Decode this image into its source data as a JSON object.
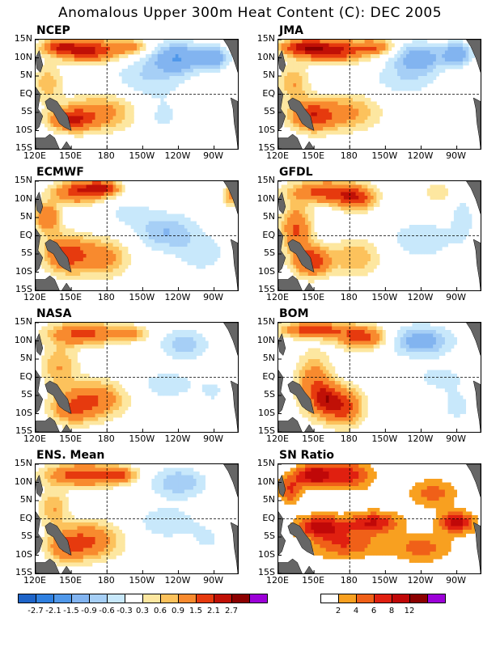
{
  "title": "Anomalous Upper 300m Heat Content (C): DEC 2005",
  "chart_data": {
    "type": "heatmap",
    "x_ticks": [
      "120E",
      "150E",
      "180",
      "150W",
      "120W",
      "90W"
    ],
    "y_ticks": [
      "15N",
      "10N",
      "5N",
      "EQ",
      "5S",
      "10S",
      "15S"
    ],
    "lon_range": [
      120,
      290
    ],
    "lat_range": [
      -15,
      15
    ],
    "panels": [
      {
        "name": "NCEP",
        "blobs": [
          [
            165,
            12,
            25,
            3,
            2.2
          ],
          [
            140,
            13,
            15,
            2,
            1.6
          ],
          [
            150,
            -7,
            18,
            3,
            1.8
          ],
          [
            175,
            -5,
            30,
            5,
            1.1
          ],
          [
            130,
            3,
            12,
            5,
            0.8
          ],
          [
            240,
            10,
            20,
            4,
            -1.4
          ],
          [
            270,
            10,
            12,
            3,
            -1.2
          ],
          [
            215,
            5,
            30,
            6,
            -0.6
          ],
          [
            225,
            -6,
            20,
            5,
            -0.4
          ],
          [
            200,
            13,
            15,
            2,
            1.0
          ]
        ]
      },
      {
        "name": "JMA",
        "blobs": [
          [
            165,
            12,
            28,
            3,
            2.3
          ],
          [
            140,
            13,
            18,
            2,
            1.7
          ],
          [
            148,
            -6,
            18,
            4,
            1.8
          ],
          [
            178,
            -5,
            28,
            5,
            1.0
          ],
          [
            133,
            3,
            12,
            5,
            0.9
          ],
          [
            238,
            10,
            20,
            4,
            -1.2
          ],
          [
            270,
            11,
            12,
            3,
            -1.3
          ],
          [
            225,
            4,
            28,
            5,
            -0.5
          ],
          [
            230,
            -9,
            18,
            4,
            -0.3
          ],
          [
            202,
            13,
            15,
            2,
            1.2
          ]
        ]
      },
      {
        "name": "ECMWF",
        "blobs": [
          [
            155,
            12,
            20,
            3,
            1.8
          ],
          [
            175,
            13,
            15,
            2,
            2.0
          ],
          [
            130,
            5,
            10,
            4,
            1.5
          ],
          [
            145,
            -5,
            18,
            5,
            1.7
          ],
          [
            175,
            -6,
            22,
            5,
            1.2
          ],
          [
            230,
            1,
            25,
            5,
            -0.9
          ],
          [
            200,
            6,
            18,
            3,
            -0.5
          ],
          [
            260,
            -5,
            20,
            5,
            -0.5
          ],
          [
            285,
            11,
            6,
            3,
            1.2
          ]
        ]
      },
      {
        "name": "GFDL",
        "blobs": [
          [
            160,
            12,
            30,
            3,
            1.8
          ],
          [
            185,
            10,
            15,
            3,
            1.6
          ],
          [
            135,
            2,
            12,
            6,
            1.6
          ],
          [
            148,
            -7,
            15,
            4,
            2.0
          ],
          [
            185,
            -6,
            20,
            5,
            0.9
          ],
          [
            240,
            -1,
            25,
            5,
            -0.6
          ],
          [
            275,
            5,
            12,
            8,
            -0.4
          ],
          [
            255,
            12,
            15,
            3,
            0.5
          ]
        ]
      },
      {
        "name": "NASA",
        "blobs": [
          [
            160,
            12,
            28,
            3,
            1.7
          ],
          [
            200,
            12,
            15,
            2,
            1.0
          ],
          [
            140,
            3,
            15,
            6,
            0.9
          ],
          [
            170,
            -6,
            25,
            5,
            1.4
          ],
          [
            150,
            -9,
            18,
            4,
            1.1
          ],
          [
            245,
            9,
            20,
            4,
            -0.8
          ],
          [
            230,
            -2,
            25,
            4,
            -0.5
          ],
          [
            270,
            -4,
            15,
            6,
            -0.3
          ]
        ]
      },
      {
        "name": "BOM",
        "blobs": [
          [
            150,
            13,
            25,
            2,
            2.0
          ],
          [
            190,
            11,
            20,
            3,
            1.8
          ],
          [
            150,
            -2,
            15,
            8,
            1.3
          ],
          [
            175,
            -8,
            15,
            5,
            1.9
          ],
          [
            160,
            -6,
            10,
            4,
            1.5
          ],
          [
            240,
            10,
            25,
            4,
            -1.2
          ],
          [
            255,
            0,
            25,
            4,
            -0.4
          ],
          [
            270,
            -8,
            15,
            5,
            -0.4
          ]
        ]
      },
      {
        "name": "ENS. Mean",
        "blobs": [
          [
            160,
            12,
            30,
            3,
            1.9
          ],
          [
            190,
            12,
            15,
            2,
            1.2
          ],
          [
            135,
            3,
            12,
            5,
            0.9
          ],
          [
            165,
            -6,
            25,
            5,
            1.5
          ],
          [
            145,
            -8,
            15,
            4,
            1.1
          ],
          [
            240,
            10,
            22,
            4,
            -0.9
          ],
          [
            230,
            -1,
            28,
            5,
            -0.5
          ],
          [
            265,
            -6,
            15,
            5,
            -0.3
          ]
        ]
      },
      {
        "name": "SN Ratio",
        "blobs": [
          [
            150,
            12,
            15,
            3,
            10
          ],
          [
            180,
            12,
            20,
            4,
            7
          ],
          [
            155,
            -2,
            20,
            3,
            9
          ],
          [
            200,
            -1,
            22,
            3,
            8
          ],
          [
            175,
            -7,
            30,
            4,
            6
          ],
          [
            240,
            -8,
            25,
            4,
            5
          ],
          [
            270,
            -1,
            15,
            3,
            9
          ],
          [
            250,
            7,
            20,
            4,
            5
          ],
          [
            130,
            8,
            10,
            4,
            6
          ]
        ]
      }
    ],
    "colorbar_left": {
      "colors": [
        "#1e64c8",
        "#2f80e0",
        "#5098ea",
        "#82b4f0",
        "#a6cff6",
        "#c8e8fb",
        "#ffffff",
        "#fde7a0",
        "#fcc25c",
        "#f88a2e",
        "#e63a0e",
        "#c01006",
        "#8c0000",
        "#9c00d8"
      ],
      "labels": [
        "-2.7",
        "-2.1",
        "-1.5",
        "-0.9",
        "-0.6",
        "-0.3",
        "0.3",
        "0.6",
        "0.9",
        "1.5",
        "2.1",
        "2.7"
      ],
      "thresholds": [
        -2.7,
        -2.1,
        -1.5,
        -0.9,
        -0.6,
        -0.3,
        0.3,
        0.6,
        0.9,
        1.5,
        2.1,
        2.7
      ]
    },
    "colorbar_right": {
      "colors": [
        "#ffffff",
        "#f8a020",
        "#f06018",
        "#e02010",
        "#c00808",
        "#8c0000",
        "#9c00d8"
      ],
      "labels": [
        "2",
        "4",
        "6",
        "8",
        "12"
      ],
      "thresholds": [
        2,
        4,
        6,
        8,
        12
      ]
    }
  }
}
